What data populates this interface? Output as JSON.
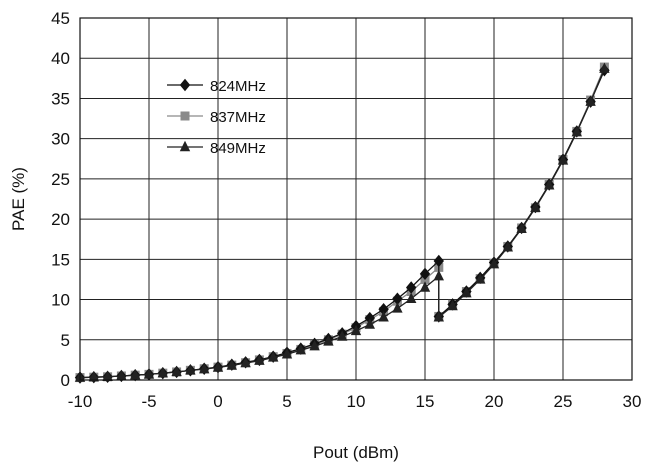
{
  "chart_data": {
    "type": "line",
    "xlabel": "Pout (dBm)",
    "ylabel": "PAE  (%)",
    "xlim": [
      -10,
      30
    ],
    "ylim": [
      0,
      45
    ],
    "xticks": [
      -10,
      -5,
      0,
      5,
      10,
      15,
      20,
      25,
      30
    ],
    "yticks": [
      0,
      5,
      10,
      15,
      20,
      25,
      30,
      35,
      40,
      45
    ],
    "xtick_labels": [
      "-10",
      "-5",
      "0",
      "5",
      "10",
      "15",
      "20",
      "25",
      "30"
    ],
    "ytick_labels": [
      "0",
      "5",
      "10",
      "15",
      "20",
      "25",
      "30",
      "35",
      "40",
      "45"
    ],
    "grid": true,
    "legend_position": "top-left",
    "series": [
      {
        "name": "824MHz",
        "marker": "diamond",
        "color": "#111111",
        "x": [
          -10,
          -9,
          -8,
          -7,
          -6,
          -5,
          -4,
          -3,
          -2,
          -1,
          0,
          1,
          2,
          3,
          4,
          5,
          6,
          7,
          8,
          9,
          10,
          11,
          12,
          13,
          14,
          15,
          16,
          16,
          17,
          18,
          19,
          20,
          21,
          22,
          23,
          24,
          25,
          26,
          27,
          28
        ],
        "y": [
          0.3,
          0.35,
          0.4,
          0.5,
          0.6,
          0.7,
          0.85,
          1.0,
          1.2,
          1.4,
          1.6,
          1.9,
          2.2,
          2.5,
          2.9,
          3.4,
          3.9,
          4.5,
          5.1,
          5.8,
          6.7,
          7.7,
          8.8,
          10.1,
          11.5,
          13.2,
          14.8,
          7.9,
          9.4,
          11.0,
          12.7,
          14.6,
          16.6,
          18.9,
          21.5,
          24.3,
          27.4,
          30.9,
          34.6,
          38.5
        ]
      },
      {
        "name": "837MHz",
        "marker": "square",
        "color": "#8a8a8a",
        "x": [
          -10,
          -9,
          -8,
          -7,
          -6,
          -5,
          -4,
          -3,
          -2,
          -1,
          0,
          1,
          2,
          3,
          4,
          5,
          6,
          7,
          8,
          9,
          10,
          11,
          12,
          13,
          14,
          15,
          16,
          16,
          17,
          18,
          19,
          20,
          21,
          22,
          23,
          24,
          25,
          26,
          27,
          28
        ],
        "y": [
          0.3,
          0.35,
          0.4,
          0.5,
          0.6,
          0.7,
          0.85,
          1.0,
          1.2,
          1.4,
          1.6,
          1.85,
          2.15,
          2.5,
          2.9,
          3.3,
          3.8,
          4.4,
          5.0,
          5.7,
          6.5,
          7.5,
          8.5,
          9.8,
          11.0,
          12.5,
          14.0,
          7.9,
          9.4,
          11.0,
          12.6,
          14.5,
          16.6,
          18.9,
          21.4,
          24.3,
          27.4,
          30.9,
          34.8,
          38.9
        ]
      },
      {
        "name": "849MHz",
        "marker": "triangle",
        "color": "#222222",
        "x": [
          -10,
          -9,
          -8,
          -7,
          -6,
          -5,
          -4,
          -3,
          -2,
          -1,
          0,
          1,
          2,
          3,
          4,
          5,
          6,
          7,
          8,
          9,
          10,
          11,
          12,
          13,
          14,
          15,
          16,
          16,
          17,
          18,
          19,
          20,
          21,
          22,
          23,
          24,
          25,
          26,
          27,
          28
        ],
        "y": [
          0.3,
          0.35,
          0.4,
          0.5,
          0.6,
          0.7,
          0.85,
          1.0,
          1.2,
          1.35,
          1.55,
          1.8,
          2.1,
          2.4,
          2.8,
          3.2,
          3.7,
          4.2,
          4.8,
          5.4,
          6.1,
          6.9,
          7.8,
          8.9,
          10.1,
          11.5,
          12.9,
          7.8,
          9.2,
          10.8,
          12.5,
          14.4,
          16.5,
          18.8,
          21.4,
          24.2,
          27.3,
          30.8,
          34.6,
          38.7
        ]
      }
    ]
  }
}
